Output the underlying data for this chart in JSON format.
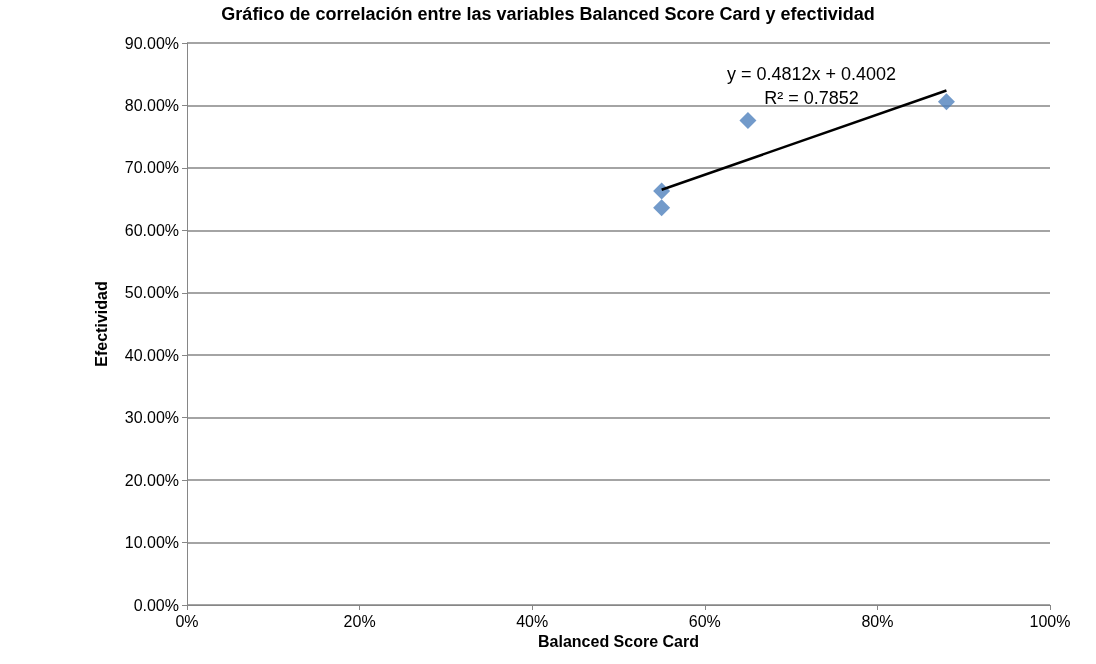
{
  "chart_data": {
    "type": "scatter",
    "title": "Gráfico de correlación entre las variables Balanced Score Card y efectividad",
    "xlabel": "Balanced Score Card",
    "ylabel": "Efectividad",
    "series": [
      {
        "color": "#4f81bd",
        "x": [
          0.55,
          0.55,
          0.65,
          0.88
        ],
        "values": [
          0.663,
          0.636,
          0.776,
          0.806
        ],
        "marker": "diamond"
      },
      {
        "type": "line",
        "color": "#000000",
        "x": [
          0.55,
          0.88
        ],
        "values": [
          0.665,
          0.824
        ],
        "marker": "none"
      }
    ],
    "annotations": [
      "y = 0.4812x + 0.4002",
      "R² = 0.7852"
    ],
    "xlim": [
      0,
      1
    ],
    "xticks": [
      {
        "value": 0,
        "label": "0%"
      },
      {
        "value": 0.2,
        "label": "20%"
      },
      {
        "value": 0.4,
        "label": "40%"
      },
      {
        "value": 0.6,
        "label": "60%"
      },
      {
        "value": 0.8,
        "label": "80%"
      },
      {
        "value": 1,
        "label": "100%"
      }
    ],
    "ylim": [
      0,
      0.9
    ],
    "yticks": [
      {
        "value": 0,
        "label": "0.00%"
      },
      {
        "value": 0.1,
        "label": "10.00%"
      },
      {
        "value": 0.2,
        "label": "20.00%"
      },
      {
        "value": 0.3,
        "label": "30.00%"
      },
      {
        "value": 0.4,
        "label": "40.00%"
      },
      {
        "value": 0.5,
        "label": "50.00%"
      },
      {
        "value": 0.6,
        "label": "60.00%"
      },
      {
        "value": 0.7,
        "label": "70.00%"
      },
      {
        "value": 0.8,
        "label": "80.00%"
      },
      {
        "value": 0.9,
        "label": "90.00%"
      }
    ],
    "grid": "y"
  }
}
